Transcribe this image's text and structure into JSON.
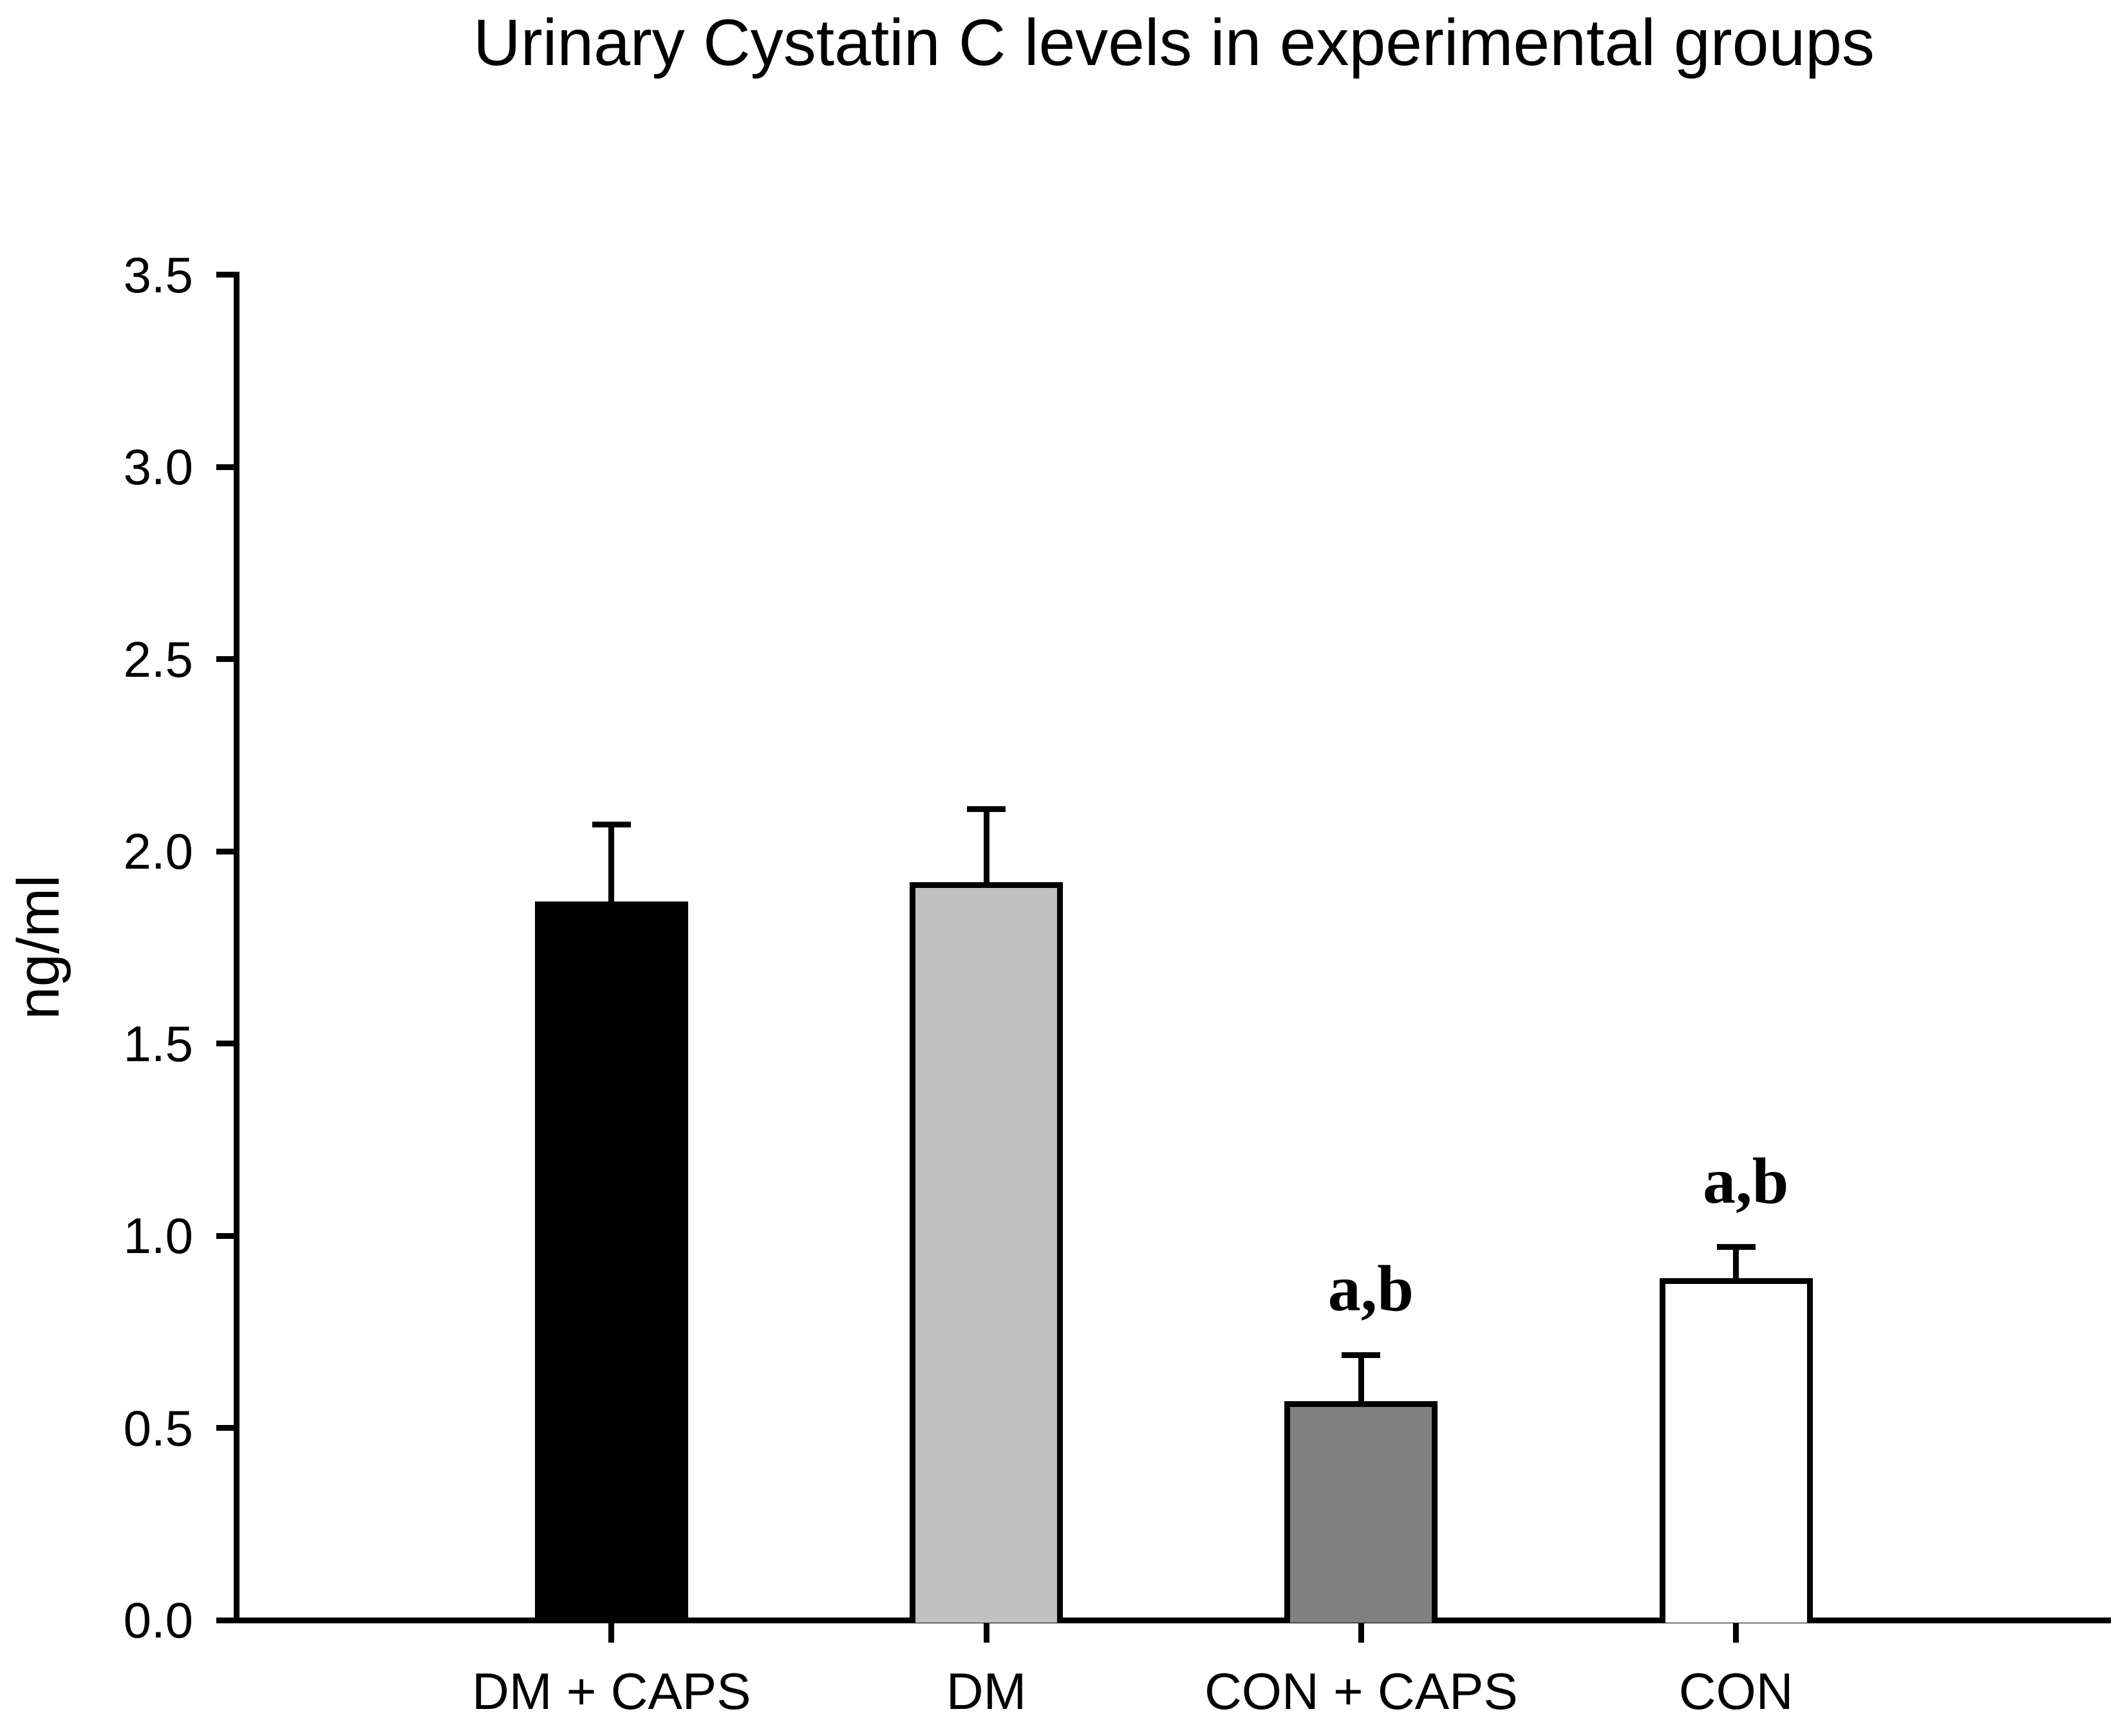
{
  "chart_data": {
    "type": "bar",
    "title": "Urinary Cystatin C levels in experimental groups",
    "xlabel": "",
    "ylabel": "ng/ml",
    "ylim": [
      0.0,
      3.5
    ],
    "ytick_labels": [
      "0.0",
      "0.5",
      "1.0",
      "1.5",
      "2.0",
      "2.5",
      "3.0",
      "3.5"
    ],
    "grid": false,
    "legend_position": "none",
    "categories": [
      "DM + CAPS",
      "DM",
      "CON + CAPS",
      "CON"
    ],
    "values": [
      1.87,
      1.92,
      0.57,
      0.89
    ],
    "errors_plus": [
      0.2,
      0.19,
      0.12,
      0.08
    ],
    "bar_fill_colors": [
      "#000000",
      "#c1c1c1",
      "#808080",
      "#ffffff"
    ],
    "bar_border_color": "#000000",
    "error_bar_color": "#000000",
    "annotations": [
      "",
      "",
      "a,b",
      "a,b"
    ]
  }
}
